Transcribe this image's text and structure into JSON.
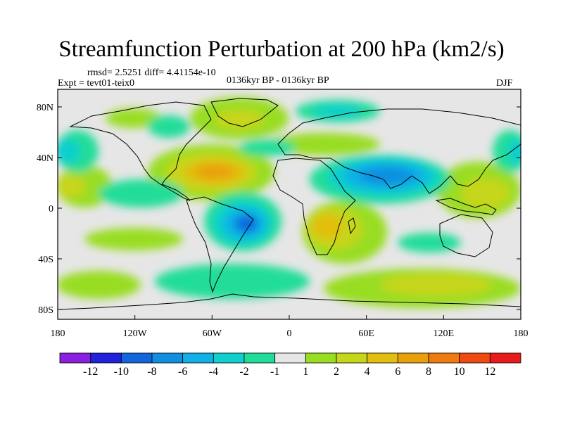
{
  "title": "Streamfunction Perturbation at 200 hPa (km2/s)",
  "stats_line": "rmsd= 2.5251 diff= 4.41154e-10",
  "expt_label": "Expt = tevt01-teix0",
  "period_label": "0136kyr BP - 0136kyr BP",
  "season_label": "DJF",
  "lat_ticks": [
    "80N",
    "40N",
    "0",
    "40S",
    "80S"
  ],
  "lon_ticks": [
    "180",
    "120W",
    "60W",
    "0",
    "60E",
    "120E",
    "180"
  ],
  "colorbar": {
    "labels": [
      "-12",
      "-10",
      "-8",
      "-6",
      "-4",
      "-2",
      "-1",
      "1",
      "2",
      "4",
      "6",
      "8",
      "10",
      "12"
    ],
    "colors": [
      "#8a1fe0",
      "#2222dd",
      "#1166dd",
      "#118ee0",
      "#11b0e6",
      "#10cfcc",
      "#22dd99",
      "#e6e6e6",
      "#99dd22",
      "#c6d61a",
      "#e2be10",
      "#e8a00c",
      "#ee7a10",
      "#ee4a12",
      "#e81b1b"
    ]
  }
}
